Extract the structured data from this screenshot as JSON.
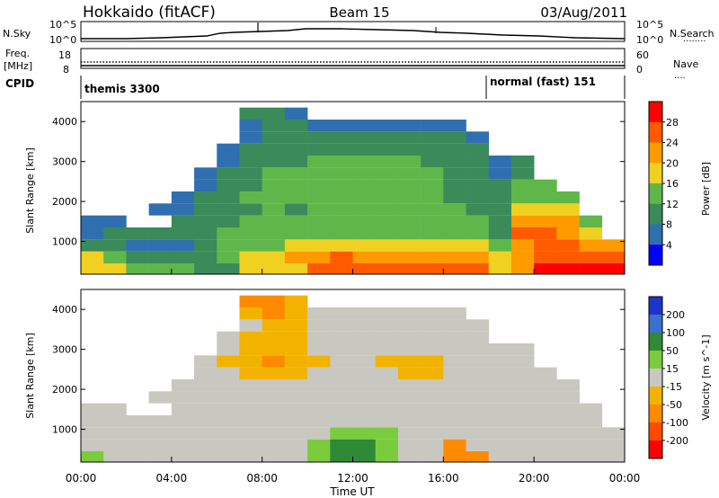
{
  "header": {
    "title": "Hokkaido (fitACF)",
    "beam": "Beam 15",
    "date": "03/Aug/2011"
  },
  "noise_panel": {
    "left_label": "N.Sky",
    "right_label": "N.Search",
    "left_ticks": [
      "10^5",
      "10^0"
    ],
    "right_ticks": [
      "10^5",
      "10^0"
    ]
  },
  "freq_panel": {
    "left_label": "Freq.",
    "left_unit": "[MHz]",
    "right_label": "Nave",
    "left_ticks": [
      "18",
      "8"
    ],
    "right_ticks": [
      "60",
      "0"
    ]
  },
  "cpid_panel": {
    "label": "CPID",
    "segments": [
      {
        "name": "themis 3300",
        "start_hour": 0,
        "end_hour": 18
      },
      {
        "name": "normal (fast) 151",
        "start_hour": 18,
        "end_hour": 24
      }
    ]
  },
  "colors": {
    "power_scale": [
      "#0000ff",
      "#2f6fb0",
      "#3a8a5a",
      "#5fb74a",
      "#f0d020",
      "#ff9a00",
      "#ff5a00",
      "#ff0000"
    ],
    "velocity_scale": [
      "#1d35c7",
      "#3b6fd1",
      "#2f8a38",
      "#7acc3c",
      "#c8c8c0",
      "#f2b300",
      "#ff8a00",
      "#ff4a00",
      "#ff0000"
    ]
  },
  "chart_data": [
    {
      "type": "heatmap",
      "name": "Power",
      "ylabel": "Slant Range [km]",
      "ylim": [
        180,
        4500
      ],
      "yticks": [
        "1000",
        "2000",
        "3000",
        "4000"
      ],
      "colorbar_label": "Power [dB]",
      "colorbar_ticks": [
        "28",
        "24",
        "20",
        "16",
        "12",
        "8",
        "4"
      ],
      "range": [
        0,
        30
      ],
      "x": [
        0,
        1,
        2,
        3,
        4,
        5,
        6,
        7,
        8,
        9,
        10,
        11,
        12,
        13,
        14,
        15,
        16,
        17,
        18,
        19,
        20,
        21,
        22,
        23
      ],
      "ranges_km": [
        300,
        600,
        900,
        1200,
        1500,
        1800,
        2100,
        2400,
        2700,
        3000,
        3300,
        3600,
        3900,
        4200
      ],
      "z": [
        [
          18,
          16,
          12,
          14,
          12,
          10,
          10,
          16,
          16,
          18,
          24,
          26,
          26,
          26,
          24,
          24,
          24,
          24,
          16,
          22,
          28,
          28,
          28,
          28
        ],
        [
          16,
          14,
          10,
          10,
          8,
          8,
          14,
          16,
          18,
          20,
          22,
          24,
          22,
          22,
          22,
          22,
          22,
          20,
          16,
          22,
          26,
          26,
          26,
          26
        ],
        [
          10,
          10,
          6,
          6,
          6,
          8,
          12,
          14,
          14,
          16,
          18,
          18,
          18,
          18,
          18,
          16,
          16,
          16,
          12,
          22,
          24,
          24,
          22,
          20
        ],
        [
          6,
          8,
          8,
          8,
          8,
          8,
          12,
          12,
          12,
          12,
          14,
          14,
          14,
          14,
          14,
          14,
          12,
          12,
          10,
          24,
          24,
          20,
          18,
          0
        ],
        [
          6,
          6,
          0,
          0,
          8,
          10,
          10,
          12,
          12,
          12,
          12,
          14,
          14,
          14,
          12,
          12,
          12,
          12,
          10,
          20,
          22,
          20,
          12,
          0
        ],
        [
          0,
          0,
          0,
          4,
          6,
          8,
          10,
          10,
          12,
          10,
          12,
          12,
          14,
          14,
          12,
          12,
          12,
          10,
          8,
          16,
          18,
          16,
          0,
          0
        ],
        [
          0,
          0,
          0,
          0,
          4,
          8,
          10,
          12,
          12,
          12,
          12,
          12,
          12,
          12,
          12,
          12,
          10,
          10,
          8,
          14,
          14,
          12,
          0,
          0
        ],
        [
          0,
          0,
          0,
          0,
          0,
          6,
          8,
          10,
          12,
          12,
          12,
          12,
          12,
          12,
          12,
          12,
          10,
          10,
          8,
          12,
          12,
          0,
          0,
          0
        ],
        [
          0,
          0,
          0,
          0,
          0,
          6,
          8,
          10,
          12,
          12,
          12,
          12,
          12,
          12,
          12,
          12,
          10,
          10,
          6,
          8,
          0,
          0,
          0,
          0
        ],
        [
          0,
          0,
          0,
          0,
          0,
          0,
          6,
          8,
          10,
          10,
          12,
          12,
          12,
          12,
          12,
          10,
          10,
          8,
          6,
          8,
          0,
          0,
          0,
          0
        ],
        [
          0,
          0,
          0,
          0,
          0,
          0,
          6,
          8,
          8,
          8,
          10,
          10,
          10,
          10,
          10,
          10,
          8,
          8,
          0,
          0,
          0,
          0,
          0,
          0
        ],
        [
          0,
          0,
          0,
          0,
          0,
          0,
          0,
          6,
          8,
          8,
          8,
          8,
          8,
          8,
          8,
          8,
          8,
          6,
          0,
          0,
          0,
          0,
          0,
          0
        ],
        [
          0,
          0,
          0,
          0,
          0,
          0,
          0,
          6,
          8,
          8,
          6,
          6,
          6,
          6,
          6,
          6,
          6,
          0,
          0,
          0,
          0,
          0,
          0,
          0
        ],
        [
          0,
          0,
          0,
          0,
          0,
          0,
          0,
          8,
          8,
          6,
          0,
          0,
          0,
          0,
          0,
          0,
          0,
          0,
          0,
          0,
          0,
          0,
          0,
          0
        ]
      ]
    },
    {
      "type": "heatmap",
      "name": "Velocity",
      "ylabel": "Slant Range [km]",
      "ylim": [
        180,
        4500
      ],
      "yticks": [
        "1000",
        "2000",
        "3000",
        "4000"
      ],
      "xlabel": "Time UT",
      "xticks": [
        "00:00",
        "04:00",
        "08:00",
        "12:00",
        "16:00",
        "20:00",
        "00:00"
      ],
      "colorbar_label": "Velocity [m s^-1]",
      "colorbar_ticks": [
        "200",
        "100",
        "50",
        "15",
        "-15",
        "-50",
        "-100",
        "-200"
      ],
      "range": [
        -250,
        250
      ],
      "x": [
        0,
        1,
        2,
        3,
        4,
        5,
        6,
        7,
        8,
        9,
        10,
        11,
        12,
        13,
        14,
        15,
        16,
        17,
        18,
        19,
        20,
        21,
        22,
        23
      ],
      "ranges_km": [
        300,
        600,
        900,
        1200,
        1500,
        1800,
        2100,
        2400,
        2700,
        3000,
        3300,
        3600,
        3900,
        4200
      ],
      "z": [
        [
          20,
          0,
          0,
          0,
          0,
          0,
          0,
          0,
          0,
          10,
          40,
          60,
          60,
          30,
          0,
          0,
          -80,
          -60,
          0,
          0,
          0,
          0,
          0,
          0
        ],
        [
          0,
          0,
          0,
          0,
          0,
          0,
          0,
          0,
          0,
          0,
          20,
          60,
          80,
          40,
          10,
          0,
          -60,
          0,
          0,
          0,
          0,
          0,
          0,
          0
        ],
        [
          0,
          0,
          0,
          0,
          0,
          0,
          0,
          0,
          0,
          0,
          0,
          30,
          40,
          20,
          0,
          0,
          0,
          0,
          0,
          0,
          0,
          0,
          0,
          0
        ],
        [
          0,
          0,
          0,
          0,
          0,
          0,
          0,
          0,
          0,
          0,
          0,
          0,
          0,
          0,
          0,
          0,
          0,
          0,
          0,
          0,
          0,
          0,
          0,
          0
        ],
        [
          0,
          0,
          0,
          0,
          0,
          0,
          0,
          0,
          0,
          0,
          0,
          0,
          0,
          0,
          0,
          0,
          0,
          0,
          0,
          0,
          0,
          0,
          0,
          0
        ],
        [
          0,
          0,
          0,
          0,
          0,
          0,
          0,
          0,
          0,
          0,
          0,
          0,
          0,
          0,
          0,
          0,
          0,
          0,
          0,
          0,
          0,
          0,
          0,
          0
        ],
        [
          0,
          0,
          0,
          0,
          0,
          0,
          0,
          0,
          0,
          0,
          0,
          0,
          0,
          0,
          0,
          0,
          0,
          0,
          0,
          0,
          0,
          0,
          0,
          0
        ],
        [
          0,
          0,
          0,
          0,
          0,
          0,
          0,
          -30,
          -40,
          -30,
          0,
          0,
          0,
          0,
          -30,
          -30,
          0,
          0,
          0,
          0,
          0,
          0,
          0,
          0
        ],
        [
          0,
          0,
          0,
          0,
          0,
          0,
          -20,
          -40,
          -60,
          -40,
          -30,
          0,
          0,
          -20,
          -40,
          -40,
          0,
          0,
          0,
          0,
          0,
          0,
          0,
          0
        ],
        [
          0,
          0,
          0,
          0,
          0,
          0,
          0,
          -30,
          -40,
          -30,
          0,
          0,
          0,
          0,
          0,
          0,
          0,
          0,
          0,
          0,
          0,
          0,
          0,
          0
        ],
        [
          0,
          0,
          0,
          0,
          0,
          0,
          0,
          -20,
          -40,
          -30,
          0,
          0,
          0,
          0,
          0,
          0,
          0,
          0,
          0,
          0,
          0,
          0,
          0,
          0
        ],
        [
          0,
          0,
          0,
          0,
          0,
          0,
          0,
          0,
          -40,
          -30,
          0,
          0,
          0,
          0,
          0,
          0,
          0,
          0,
          0,
          0,
          0,
          0,
          0,
          0
        ],
        [
          0,
          0,
          0,
          0,
          0,
          0,
          0,
          -40,
          -60,
          -40,
          0,
          0,
          0,
          0,
          0,
          0,
          0,
          0,
          0,
          0,
          0,
          0,
          0,
          0
        ],
        [
          0,
          0,
          0,
          0,
          0,
          0,
          0,
          -60,
          -80,
          -40,
          0,
          0,
          0,
          0,
          0,
          0,
          0,
          0,
          0,
          0,
          0,
          0,
          0,
          0
        ]
      ]
    }
  ]
}
